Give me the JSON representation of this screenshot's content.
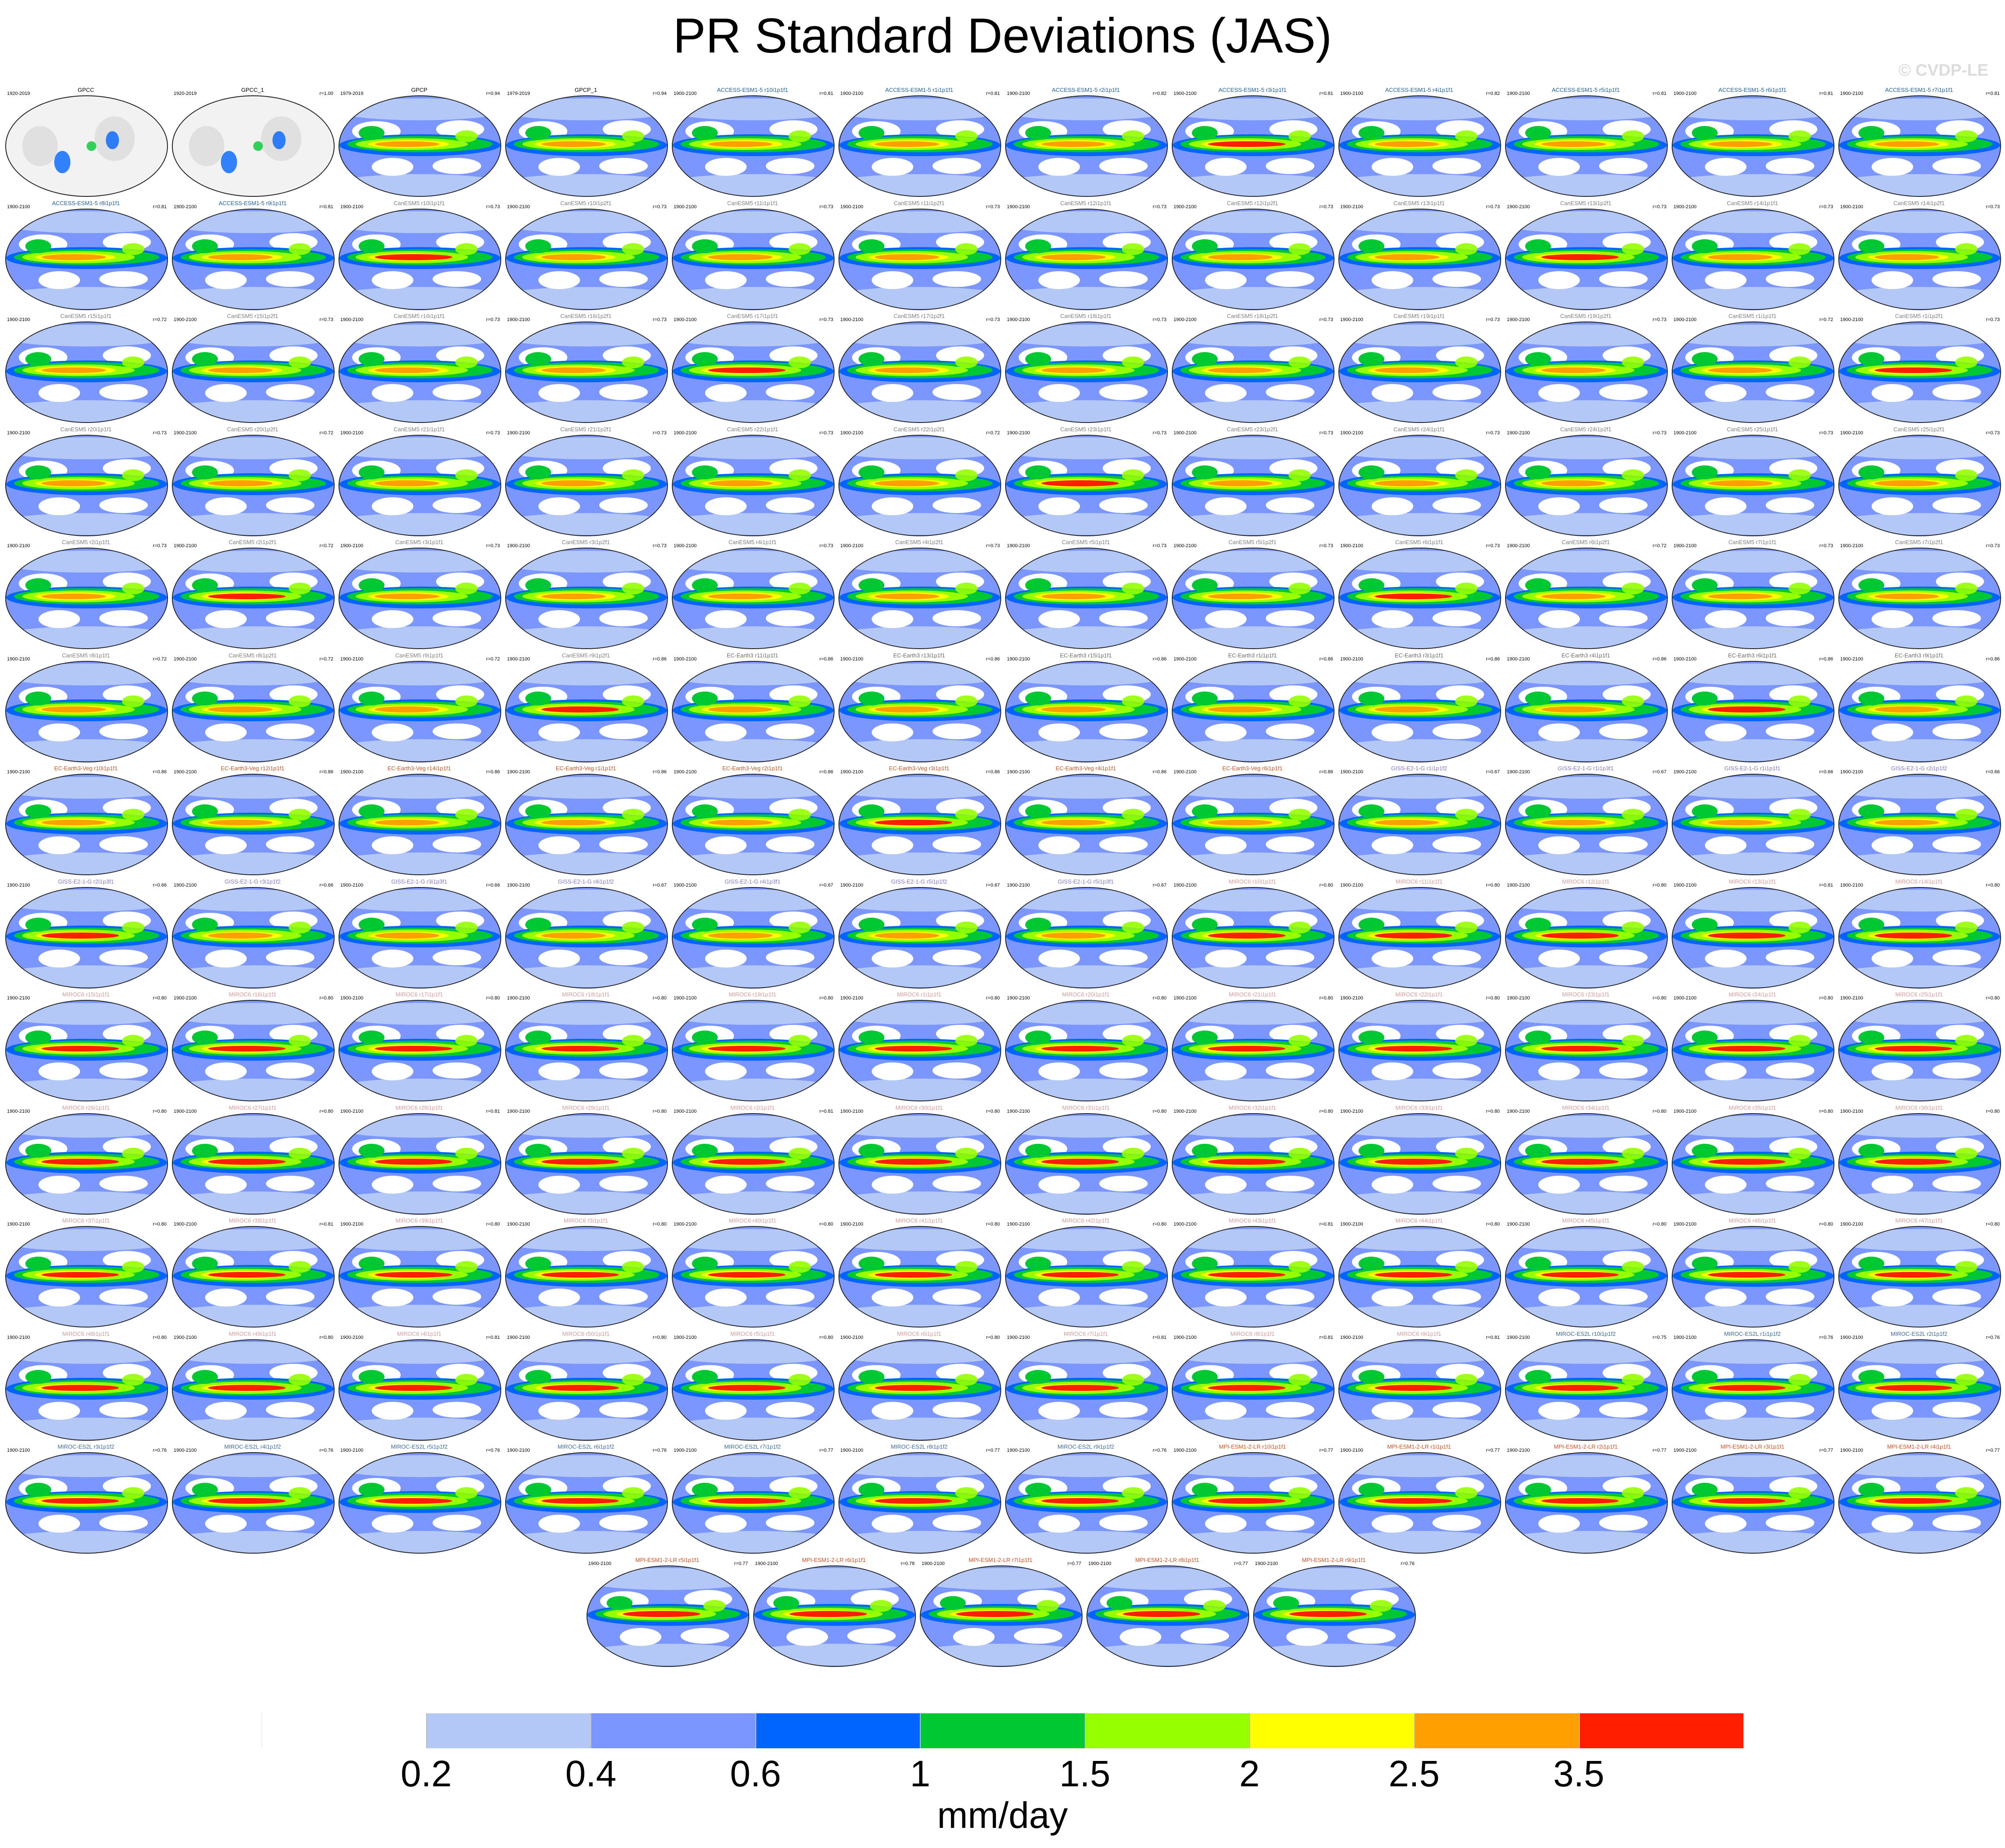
{
  "figure": {
    "title": "PR Standard Deviations (JAS)",
    "copyright": "© CVDP-LE",
    "units": "mm/day"
  },
  "chart_data": {
    "type": "heatmap",
    "title": "PR Standard Deviations (JAS)",
    "colorbar": {
      "units": "mm/day",
      "tick_labels": [
        "0.2",
        "0.4",
        "0.6",
        "1",
        "1.5",
        "2",
        "2.5",
        "3.5"
      ],
      "colors": [
        "#ffffff",
        "#b4c8f8",
        "#7b96ff",
        "#0064ff",
        "#00c832",
        "#96ff00",
        "#ffff00",
        "#ffa000",
        "#ff1e00"
      ]
    },
    "model_colors": {
      "obs": "#000000",
      "ACCESS-ESM1-5": "#1f5f9f",
      "CanESM5": "#7f7f7f",
      "EC-Earth3": "#6a6a6a",
      "EC-Earth3-Veg": "#c0581f",
      "GISS-E2-1-G": "#8a76c8",
      "MIROC6": "#d89a9a",
      "MIROC-ES2L": "#3a6aa0",
      "MPI-ESM1-2-LR": "#d4501e"
    },
    "panels": [
      {
        "title": "GPCC",
        "years": "1920-2019",
        "corr": ""
      },
      {
        "title": "GPCC_1",
        "years": "1920-2019",
        "corr": "r=1.00"
      },
      {
        "title": "GPCP",
        "years": "1979-2019",
        "corr": "r=0.94"
      },
      {
        "title": "GPCP_1",
        "years": "1979-2019",
        "corr": "r=0.94"
      },
      {
        "title": "ACCESS-ESM1-5 r10i1p1f1",
        "years": "1900-2100",
        "corr": "r=0.81"
      },
      {
        "title": "ACCESS-ESM1-5 r1i1p1f1",
        "years": "1900-2100",
        "corr": "r=0.81"
      },
      {
        "title": "ACCESS-ESM1-5 r2i1p1f1",
        "years": "1900-2100",
        "corr": "r=0.82"
      },
      {
        "title": "ACCESS-ESM1-5 r3i1p1f1",
        "years": "1900-2100",
        "corr": "r=0.81"
      },
      {
        "title": "ACCESS-ESM1-5 r4i1p1f1",
        "years": "1900-2100",
        "corr": "r=0.82"
      },
      {
        "title": "ACCESS-ESM1-5 r5i1p1f1",
        "years": "1900-2100",
        "corr": "r=0.81"
      },
      {
        "title": "ACCESS-ESM1-5 r6i1p1f1",
        "years": "1900-2100",
        "corr": "r=0.81"
      },
      {
        "title": "ACCESS-ESM1-5 r7i1p1f1",
        "years": "1900-2100",
        "corr": "r=0.81"
      },
      {
        "title": "ACCESS-ESM1-5 r8i1p1f1",
        "years": "1900-2100",
        "corr": "r=0.81"
      },
      {
        "title": "ACCESS-ESM1-5 r9i1p1f1",
        "years": "1900-2100",
        "corr": "r=0.81"
      },
      {
        "title": "CanESM5 r10i1p1f1",
        "years": "1900-2100",
        "corr": "r=0.73"
      },
      {
        "title": "CanESM5 r10i1p2f1",
        "years": "1900-2100",
        "corr": "r=0.73"
      },
      {
        "title": "CanESM5 r11i1p1f1",
        "years": "1900-2100",
        "corr": "r=0.73"
      },
      {
        "title": "CanESM5 r11i1p2f1",
        "years": "1900-2100",
        "corr": "r=0.73"
      },
      {
        "title": "CanESM5 r12i1p1f1",
        "years": "1900-2100",
        "corr": "r=0.73"
      },
      {
        "title": "CanESM5 r12i1p2f1",
        "years": "1900-2100",
        "corr": "r=0.73"
      },
      {
        "title": "CanESM5 r13i1p1f1",
        "years": "1900-2100",
        "corr": "r=0.73"
      },
      {
        "title": "CanESM5 r13i1p2f1",
        "years": "1900-2100",
        "corr": "r=0.73"
      },
      {
        "title": "CanESM5 r14i1p1f1",
        "years": "1900-2100",
        "corr": "r=0.73"
      },
      {
        "title": "CanESM5 r14i1p2f1",
        "years": "1900-2100",
        "corr": "r=0.73"
      },
      {
        "title": "CanESM5 r15i1p1f1",
        "years": "1900-2100",
        "corr": "r=0.72"
      },
      {
        "title": "CanESM5 r15i1p2f1",
        "years": "1900-2100",
        "corr": "r=0.73"
      },
      {
        "title": "CanESM5 r16i1p1f1",
        "years": "1900-2100",
        "corr": "r=0.73"
      },
      {
        "title": "CanESM5 r16i1p2f1",
        "years": "1900-2100",
        "corr": "r=0.73"
      },
      {
        "title": "CanESM5 r17i1p1f1",
        "years": "1900-2100",
        "corr": "r=0.73"
      },
      {
        "title": "CanESM5 r17i1p2f1",
        "years": "1900-2100",
        "corr": "r=0.73"
      },
      {
        "title": "CanESM5 r18i1p1f1",
        "years": "1900-2100",
        "corr": "r=0.73"
      },
      {
        "title": "CanESM5 r18i1p2f1",
        "years": "1900-2100",
        "corr": "r=0.73"
      },
      {
        "title": "CanESM5 r19i1p1f1",
        "years": "1900-2100",
        "corr": "r=0.73"
      },
      {
        "title": "CanESM5 r19i1p2f1",
        "years": "1900-2100",
        "corr": "r=0.73"
      },
      {
        "title": "CanESM5 r1i1p1f1",
        "years": "1900-2100",
        "corr": "r=0.72"
      },
      {
        "title": "CanESM5 r1i1p2f1",
        "years": "1900-2100",
        "corr": "r=0.73"
      },
      {
        "title": "CanESM5 r20i1p1f1",
        "years": "1900-2100",
        "corr": "r=0.73"
      },
      {
        "title": "CanESM5 r20i1p2f1",
        "years": "1900-2100",
        "corr": "r=0.72"
      },
      {
        "title": "CanESM5 r21i1p1f1",
        "years": "1900-2100",
        "corr": "r=0.73"
      },
      {
        "title": "CanESM5 r21i1p2f1",
        "years": "1900-2100",
        "corr": "r=0.73"
      },
      {
        "title": "CanESM5 r22i1p1f1",
        "years": "1900-2100",
        "corr": "r=0.73"
      },
      {
        "title": "CanESM5 r22i1p2f1",
        "years": "1900-2100",
        "corr": "r=0.72"
      },
      {
        "title": "CanESM5 r23i1p1f1",
        "years": "1900-2100",
        "corr": "r=0.73"
      },
      {
        "title": "CanESM5 r23i1p2f1",
        "years": "1900-2100",
        "corr": "r=0.73"
      },
      {
        "title": "CanESM5 r24i1p1f1",
        "years": "1900-2100",
        "corr": "r=0.73"
      },
      {
        "title": "CanESM5 r24i1p2f1",
        "years": "1900-2100",
        "corr": "r=0.73"
      },
      {
        "title": "CanESM5 r25i1p1f1",
        "years": "1900-2100",
        "corr": "r=0.73"
      },
      {
        "title": "CanESM5 r25i1p2f1",
        "years": "1900-2100",
        "corr": "r=0.73"
      },
      {
        "title": "CanESM5 r2i1p1f1",
        "years": "1900-2100",
        "corr": "r=0.73"
      },
      {
        "title": "CanESM5 r2i1p2f1",
        "years": "1900-2100",
        "corr": "r=0.72"
      },
      {
        "title": "CanESM5 r3i1p1f1",
        "years": "1900-2100",
        "corr": "r=0.73"
      },
      {
        "title": "CanESM5 r3i1p2f1",
        "years": "1900-2100",
        "corr": "r=0.73"
      },
      {
        "title": "CanESM5 r4i1p1f1",
        "years": "1900-2100",
        "corr": "r=0.73"
      },
      {
        "title": "CanESM5 r4i1p2f1",
        "years": "1900-2100",
        "corr": "r=0.73"
      },
      {
        "title": "CanESM5 r5i1p1f1",
        "years": "1900-2100",
        "corr": "r=0.73"
      },
      {
        "title": "CanESM5 r5i1p2f1",
        "years": "1900-2100",
        "corr": "r=0.73"
      },
      {
        "title": "CanESM5 r6i1p1f1",
        "years": "1900-2100",
        "corr": "r=0.73"
      },
      {
        "title": "CanESM5 r6i1p2f1",
        "years": "1900-2100",
        "corr": "r=0.72"
      },
      {
        "title": "CanESM5 r7i1p1f1",
        "years": "1900-2100",
        "corr": "r=0.73"
      },
      {
        "title": "CanESM5 r7i1p2f1",
        "years": "1900-2100",
        "corr": "r=0.73"
      },
      {
        "title": "CanESM5 r8i1p1f1",
        "years": "1900-2100",
        "corr": "r=0.72"
      },
      {
        "title": "CanESM5 r8i1p2f1",
        "years": "1900-2100",
        "corr": "r=0.72"
      },
      {
        "title": "CanESM5 r9i1p1f1",
        "years": "1900-2100",
        "corr": "r=0.72"
      },
      {
        "title": "CanESM5 r9i1p2f1",
        "years": "1900-2100",
        "corr": "r=0.86"
      },
      {
        "title": "EC-Earth3 r11i1p1f1",
        "years": "1900-2100",
        "corr": "r=0.86"
      },
      {
        "title": "EC-Earth3 r13i1p1f1",
        "years": "1900-2100",
        "corr": "r=0.86"
      },
      {
        "title": "EC-Earth3 r15i1p1f1",
        "years": "1900-2100",
        "corr": "r=0.86"
      },
      {
        "title": "EC-Earth3 r1i1p1f1",
        "years": "1900-2100",
        "corr": "r=0.86"
      },
      {
        "title": "EC-Earth3 r3i1p1f1",
        "years": "1900-2100",
        "corr": "r=0.86"
      },
      {
        "title": "EC-Earth3 r4i1p1f1",
        "years": "1900-2100",
        "corr": "r=0.86"
      },
      {
        "title": "EC-Earth3 r6i1p1f1",
        "years": "1900-2100",
        "corr": "r=0.86"
      },
      {
        "title": "EC-Earth3 r9i1p1f1",
        "years": "1900-2100",
        "corr": "r=0.86"
      },
      {
        "title": "EC-Earth3-Veg r10i1p1f1",
        "years": "1900-2100",
        "corr": "r=0.86"
      },
      {
        "title": "EC-Earth3-Veg r12i1p1f1",
        "years": "1900-2100",
        "corr": "r=0.86"
      },
      {
        "title": "EC-Earth3-Veg r14i1p1f1",
        "years": "1900-2100",
        "corr": "r=0.86"
      },
      {
        "title": "EC-Earth3-Veg r1i1p1f1",
        "years": "1900-2100",
        "corr": "r=0.86"
      },
      {
        "title": "EC-Earth3-Veg r2i1p1f1",
        "years": "1900-2100",
        "corr": "r=0.86"
      },
      {
        "title": "EC-Earth3-Veg r3i1p1f1",
        "years": "1900-2100",
        "corr": "r=0.86"
      },
      {
        "title": "EC-Earth3-Veg r4i1p1f1",
        "years": "1900-2100",
        "corr": "r=0.86"
      },
      {
        "title": "EC-Earth3-Veg r6i1p1f1",
        "years": "1900-2100",
        "corr": "r=0.86"
      },
      {
        "title": "GISS-E2-1-G r1i1p1f2",
        "years": "1900-2100",
        "corr": "r=0.67"
      },
      {
        "title": "GISS-E2-1-G r1i1p3f1",
        "years": "1900-2100",
        "corr": "r=0.67"
      },
      {
        "title": "GISS-E2-1-G r1i1p1f1",
        "years": "1900-2100",
        "corr": "r=0.66"
      },
      {
        "title": "GISS-E2-1-G r2i1p1f2",
        "years": "1900-2100",
        "corr": "r=0.66"
      },
      {
        "title": "GISS-E2-1-G r2i1p3f1",
        "years": "1900-2100",
        "corr": "r=0.66"
      },
      {
        "title": "GISS-E2-1-G r3i1p1f2",
        "years": "1900-2100",
        "corr": "r=0.66"
      },
      {
        "title": "GISS-E2-1-G r3i1p3f1",
        "years": "1900-2100",
        "corr": "r=0.66"
      },
      {
        "title": "GISS-E2-1-G r4i1p1f2",
        "years": "1900-2100",
        "corr": "r=0.67"
      },
      {
        "title": "GISS-E2-1-G r4i1p3f1",
        "years": "1900-2100",
        "corr": "r=0.67"
      },
      {
        "title": "GISS-E2-1-G r5i1p1f2",
        "years": "1900-2100",
        "corr": "r=0.67"
      },
      {
        "title": "GISS-E2-1-G r5i1p3f1",
        "years": "1900-2100",
        "corr": "r=0.67"
      },
      {
        "title": "MIROC6 r10i1p1f1",
        "years": "1900-2100",
        "corr": "r=0.80"
      },
      {
        "title": "MIROC6 r11i1p1f1",
        "years": "1900-2100",
        "corr": "r=0.80"
      },
      {
        "title": "MIROC6 r12i1p1f1",
        "years": "1900-2100",
        "corr": "r=0.80"
      },
      {
        "title": "MIROC6 r13i1p1f1",
        "years": "1900-2100",
        "corr": "r=0.81"
      },
      {
        "title": "MIROC6 r14i1p1f1",
        "years": "1900-2100",
        "corr": "r=0.80"
      },
      {
        "title": "MIROC6 r15i1p1f1",
        "years": "1900-2100",
        "corr": "r=0.80"
      },
      {
        "title": "MIROC6 r16i1p1f1",
        "years": "1900-2100",
        "corr": "r=0.80"
      },
      {
        "title": "MIROC6 r17i1p1f1",
        "years": "1900-2100",
        "corr": "r=0.80"
      },
      {
        "title": "MIROC6 r18i1p1f1",
        "years": "1900-2100",
        "corr": "r=0.80"
      },
      {
        "title": "MIROC6 r19i1p1f1",
        "years": "1900-2100",
        "corr": "r=0.80"
      },
      {
        "title": "MIROC6 r1i1p1f1",
        "years": "1900-2100",
        "corr": "r=0.80"
      },
      {
        "title": "MIROC6 r20i1p1f1",
        "years": "1900-2100",
        "corr": "r=0.80"
      },
      {
        "title": "MIROC6 r21i1p1f1",
        "years": "1900-2100",
        "corr": "r=0.80"
      },
      {
        "title": "MIROC6 r22i1p1f1",
        "years": "1900-2100",
        "corr": "r=0.80"
      },
      {
        "title": "MIROC6 r23i1p1f1",
        "years": "1900-2100",
        "corr": "r=0.80"
      },
      {
        "title": "MIROC6 r24i1p1f1",
        "years": "1900-2100",
        "corr": "r=0.80"
      },
      {
        "title": "MIROC6 r25i1p1f1",
        "years": "1900-2100",
        "corr": "r=0.80"
      },
      {
        "title": "MIROC6 r26i1p1f1",
        "years": "1900-2100",
        "corr": "r=0.80"
      },
      {
        "title": "MIROC6 r27i1p1f1",
        "years": "1900-2100",
        "corr": "r=0.80"
      },
      {
        "title": "MIROC6 r28i1p1f1",
        "years": "1900-2100",
        "corr": "r=0.81"
      },
      {
        "title": "MIROC6 r29i1p1f1",
        "years": "1900-2100",
        "corr": "r=0.80"
      },
      {
        "title": "MIROC6 r2i1p1f1",
        "years": "1900-2100",
        "corr": "r=0.81"
      },
      {
        "title": "MIROC6 r30i1p1f1",
        "years": "1900-2100",
        "corr": "r=0.80"
      },
      {
        "title": "MIROC6 r31i1p1f1",
        "years": "1900-2100",
        "corr": "r=0.80"
      },
      {
        "title": "MIROC6 r32i1p1f1",
        "years": "1900-2100",
        "corr": "r=0.80"
      },
      {
        "title": "MIROC6 r33i1p1f1",
        "years": "1900-2100",
        "corr": "r=0.80"
      },
      {
        "title": "MIROC6 r34i1p1f1",
        "years": "1900-2100",
        "corr": "r=0.80"
      },
      {
        "title": "MIROC6 r35i1p1f1",
        "years": "1900-2100",
        "corr": "r=0.80"
      },
      {
        "title": "MIROC6 r36i1p1f1",
        "years": "1900-2100",
        "corr": "r=0.80"
      },
      {
        "title": "MIROC6 r37i1p1f1",
        "years": "1900-2100",
        "corr": "r=0.80"
      },
      {
        "title": "MIROC6 r38i1p1f1",
        "years": "1900-2100",
        "corr": "r=0.81"
      },
      {
        "title": "MIROC6 r39i1p1f1",
        "years": "1900-2100",
        "corr": "r=0.80"
      },
      {
        "title": "MIROC6 r3i1p1f1",
        "years": "1900-2100",
        "corr": "r=0.80"
      },
      {
        "title": "MIROC6 r40i1p1f1",
        "years": "1900-2100",
        "corr": "r=0.80"
      },
      {
        "title": "MIROC6 r41i1p1f1",
        "years": "1900-2100",
        "corr": "r=0.80"
      },
      {
        "title": "MIROC6 r42i1p1f1",
        "years": "1900-2100",
        "corr": "r=0.80"
      },
      {
        "title": "MIROC6 r43i1p1f1",
        "years": "1900-2100",
        "corr": "r=0.81"
      },
      {
        "title": "MIROC6 r44i1p1f1",
        "years": "1900-2100",
        "corr": "r=0.80"
      },
      {
        "title": "MIROC6 r45i1p1f1",
        "years": "1900-2100",
        "corr": "r=0.80"
      },
      {
        "title": "MIROC6 r46i1p1f1",
        "years": "1900-2100",
        "corr": "r=0.80"
      },
      {
        "title": "MIROC6 r47i1p1f1",
        "years": "1900-2100",
        "corr": "r=0.80"
      },
      {
        "title": "MIROC6 r48i1p1f1",
        "years": "1900-2100",
        "corr": "r=0.80"
      },
      {
        "title": "MIROC6 r49i1p1f1",
        "years": "1900-2100",
        "corr": "r=0.80"
      },
      {
        "title": "MIROC6 r4i1p1f1",
        "years": "1900-2100",
        "corr": "r=0.81"
      },
      {
        "title": "MIROC6 r50i1p1f1",
        "years": "1900-2100",
        "corr": "r=0.80"
      },
      {
        "title": "MIROC6 r5i1p1f1",
        "years": "1900-2100",
        "corr": "r=0.80"
      },
      {
        "title": "MIROC6 r6i1p1f1",
        "years": "1900-2100",
        "corr": "r=0.80"
      },
      {
        "title": "MIROC6 r7i1p1f1",
        "years": "1900-2100",
        "corr": "r=0.81"
      },
      {
        "title": "MIROC6 r8i1p1f1",
        "years": "1900-2100",
        "corr": "r=0.81"
      },
      {
        "title": "MIROC6 r9i1p1f1",
        "years": "1900-2100",
        "corr": "r=0.81"
      },
      {
        "title": "MIROC-ES2L r10i1p1f2",
        "years": "1900-2100",
        "corr": "r=0.75"
      },
      {
        "title": "MIROC-ES2L r1i1p1f2",
        "years": "1900-2100",
        "corr": "r=0.76"
      },
      {
        "title": "MIROC-ES2L r2i1p1f2",
        "years": "1900-2100",
        "corr": "r=0.76"
      },
      {
        "title": "MIROC-ES2L r3i1p1f2",
        "years": "1900-2100",
        "corr": "r=0.76"
      },
      {
        "title": "MIROC-ES2L r4i1p1f2",
        "years": "1900-2100",
        "corr": "r=0.76"
      },
      {
        "title": "MIROC-ES2L r5i1p1f2",
        "years": "1900-2100",
        "corr": "r=0.76"
      },
      {
        "title": "MIROC-ES2L r6i1p1f2",
        "years": "1900-2100",
        "corr": "r=0.76"
      },
      {
        "title": "MIROC-ES2L r7i1p1f2",
        "years": "1900-2100",
        "corr": "r=0.77"
      },
      {
        "title": "MIROC-ES2L r8i1p1f2",
        "years": "1900-2100",
        "corr": "r=0.77"
      },
      {
        "title": "MIROC-ES2L r9i1p1f2",
        "years": "1900-2100",
        "corr": "r=0.76"
      },
      {
        "title": "MPI-ESM1-2-LR r10i1p1f1",
        "years": "1900-2100",
        "corr": "r=0.77"
      },
      {
        "title": "MPI-ESM1-2-LR r1i1p1f1",
        "years": "1900-2100",
        "corr": "r=0.77"
      },
      {
        "title": "MPI-ESM1-2-LR r2i1p1f1",
        "years": "1900-2100",
        "corr": "r=0.77"
      },
      {
        "title": "MPI-ESM1-2-LR r3i1p1f1",
        "years": "1900-2100",
        "corr": "r=0.77"
      },
      {
        "title": "MPI-ESM1-2-LR r4i1p1f1",
        "years": "1900-2100",
        "corr": "r=0.77"
      },
      {
        "title": "MPI-ESM1-2-LR r5i1p1f1",
        "years": "1900-2100",
        "corr": "r=0.77"
      },
      {
        "title": "MPI-ESM1-2-LR r6i1p1f1",
        "years": "1900-2100",
        "corr": "r=0.78"
      },
      {
        "title": "MPI-ESM1-2-LR r7i1p1f1",
        "years": "1900-2100",
        "corr": "r=0.77"
      },
      {
        "title": "MPI-ESM1-2-LR r8i1p1f1",
        "years": "1900-2100",
        "corr": "r=0.77"
      },
      {
        "title": "MPI-ESM1-2-LR r9i1p1f1",
        "years": "1900-2100",
        "corr": "r=0.76"
      }
    ]
  }
}
